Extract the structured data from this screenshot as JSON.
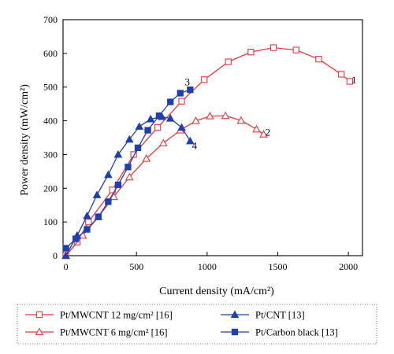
{
  "chart_data": {
    "type": "line",
    "title": "",
    "xlabel": "Current density (mA/cm²)",
    "ylabel": "Power density (mW/cm²)",
    "xlim": [
      -20,
      2100
    ],
    "ylim": [
      0,
      700
    ],
    "xticks": [
      0,
      500,
      1000,
      1500,
      2000
    ],
    "yticks": [
      0,
      100,
      200,
      300,
      400,
      500,
      600,
      700
    ],
    "grid": false,
    "legend_position": "bottom",
    "series": [
      {
        "name": "Pt/MWCNT 12 mg/cm² [16]",
        "curve_label": "1",
        "marker": "open-square",
        "color": "#e8383d",
        "points": [
          [
            0,
            0
          ],
          [
            80,
            40
          ],
          [
            160,
            100
          ],
          [
            330,
            195
          ],
          [
            480,
            300
          ],
          [
            650,
            380
          ],
          [
            820,
            458
          ],
          [
            980,
            522
          ],
          [
            1150,
            575
          ],
          [
            1310,
            604
          ],
          [
            1470,
            617
          ],
          [
            1630,
            610
          ],
          [
            1790,
            583
          ],
          [
            1950,
            538
          ],
          [
            2010,
            517
          ]
        ]
      },
      {
        "name": "Pt/MWCNT 6 mg/cm² [16]",
        "curve_label": "2",
        "marker": "open-triangle",
        "color": "#e8383d",
        "points": [
          [
            0,
            0
          ],
          [
            120,
            60
          ],
          [
            230,
            115
          ],
          [
            340,
            175
          ],
          [
            450,
            233
          ],
          [
            570,
            288
          ],
          [
            690,
            334
          ],
          [
            810,
            372
          ],
          [
            920,
            400
          ],
          [
            1020,
            414
          ],
          [
            1130,
            415
          ],
          [
            1240,
            401
          ],
          [
            1350,
            375
          ],
          [
            1400,
            360
          ]
        ]
      },
      {
        "name": "Pt/CNT [13]",
        "curve_label": "4",
        "marker": "filled-triangle",
        "color": "#1f3fae",
        "points": [
          [
            0,
            0
          ],
          [
            80,
            60
          ],
          [
            150,
            118
          ],
          [
            220,
            180
          ],
          [
            300,
            240
          ],
          [
            370,
            300
          ],
          [
            450,
            345
          ],
          [
            520,
            383
          ],
          [
            600,
            405
          ],
          [
            680,
            412
          ],
          [
            740,
            407
          ],
          [
            820,
            380
          ],
          [
            880,
            340
          ]
        ]
      },
      {
        "name": "Pt/Carbon black [13]",
        "curve_label": "3",
        "marker": "filled-square",
        "color": "#1f3fae",
        "points": [
          [
            0,
            22
          ],
          [
            70,
            50
          ],
          [
            150,
            78
          ],
          [
            230,
            115
          ],
          [
            300,
            160
          ],
          [
            370,
            210
          ],
          [
            440,
            263
          ],
          [
            510,
            320
          ],
          [
            580,
            372
          ],
          [
            660,
            415
          ],
          [
            740,
            456
          ],
          [
            810,
            482
          ],
          [
            880,
            492
          ]
        ]
      }
    ],
    "curve_labels": [
      {
        "text": "1",
        "x": 2040,
        "y": 520
      },
      {
        "text": "2",
        "x": 1430,
        "y": 365
      },
      {
        "text": "3",
        "x": 860,
        "y": 515
      },
      {
        "text": "4",
        "x": 910,
        "y": 325
      }
    ],
    "legend_rows": [
      [
        "Pt/MWCNT 12 mg/cm² [16]",
        "Pt/CNT [13]"
      ],
      [
        "Pt/MWCNT 6 mg/cm² [16]",
        "Pt/Carbon black [13]"
      ]
    ]
  }
}
